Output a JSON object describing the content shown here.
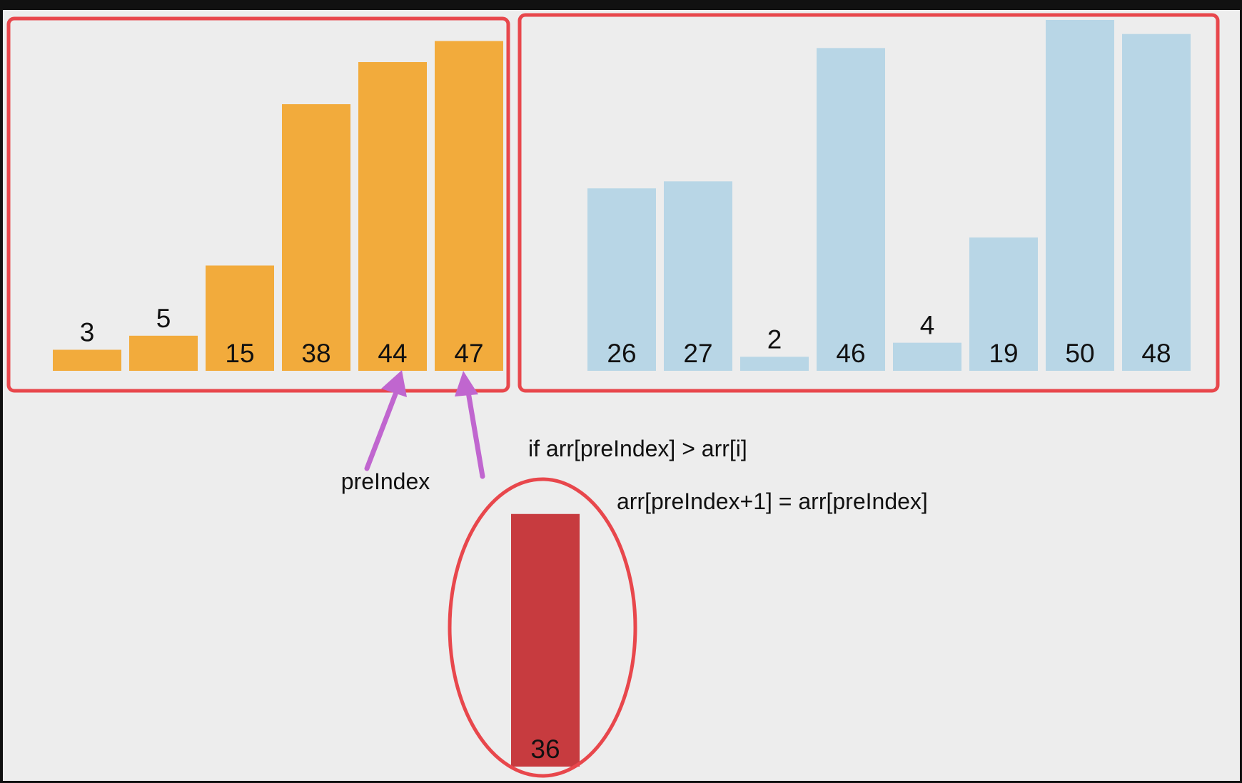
{
  "colors": {
    "sorted_bar": "#F2AB3C",
    "unsorted_bar": "#B8D6E6",
    "current_bar": "#C73B3F",
    "highlight_outline": "#E8474C",
    "arrow": "#C066CF",
    "canvas": "#EDEDED",
    "frame": "#111111",
    "text": "#111111"
  },
  "chart_data": {
    "type": "bar",
    "title": "",
    "xlabel": "",
    "ylabel": "",
    "ylim": [
      0,
      50
    ],
    "sorted": {
      "values": [
        3,
        5,
        15,
        38,
        44,
        47
      ]
    },
    "unsorted": {
      "values": [
        26,
        27,
        2,
        46,
        4,
        19,
        50,
        48
      ]
    },
    "current": {
      "values": [
        36
      ]
    }
  },
  "annotations": {
    "pointer_label": "preIndex",
    "condition": "if arr[preIndex] > arr[i]",
    "assignment": "arr[preIndex+1] = arr[preIndex]"
  }
}
